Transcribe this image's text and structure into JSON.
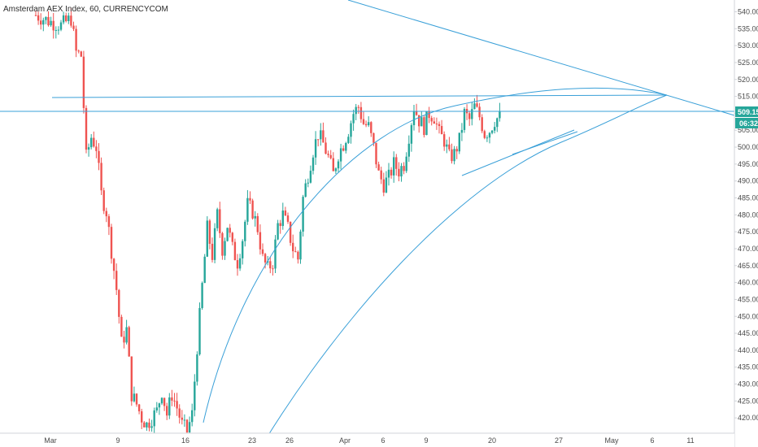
{
  "header": {
    "symbol_text": "Amsterdam AEX Index, 60, CURRENCYCOM"
  },
  "price_tag": {
    "value": "509.15",
    "countdown": "06:32",
    "color": "#26a69a"
  },
  "colors": {
    "up": "#26a69a",
    "down": "#ef5350",
    "drawing": "#3aa0d8",
    "axis": "#d0d3d8"
  },
  "chart_data": {
    "type": "candlestick",
    "y_axis": {
      "min": 415,
      "max": 543,
      "ticks": [
        420,
        425,
        430,
        435,
        440,
        445,
        450,
        455,
        460,
        465,
        470,
        475,
        480,
        485,
        490,
        495,
        500,
        505,
        510,
        515,
        520,
        525,
        530,
        535,
        540
      ],
      "tick_labels": [
        "420.00",
        "425.00",
        "430.00",
        "435.00",
        "440.00",
        "445.00",
        "450.00",
        "455.00",
        "460.00",
        "465.00",
        "470.00",
        "475.00",
        "480.00",
        "485.00",
        "490.00",
        "495.00",
        "500.00",
        "505.00",
        "510.00",
        "515.00",
        "520.00",
        "525.00",
        "530.00",
        "535.00",
        "540.00"
      ]
    },
    "x_axis": {
      "labels": [
        "Mar",
        "9",
        "16",
        "23",
        "26",
        "Apr",
        "6",
        "9",
        "20",
        "27",
        "May",
        "6",
        "11"
      ]
    },
    "price_path": [
      [
        0,
        539
      ],
      [
        6,
        537
      ],
      [
        10,
        536
      ],
      [
        14,
        538
      ],
      [
        16,
        528
      ],
      [
        18,
        527
      ],
      [
        20,
        497
      ],
      [
        22,
        503
      ],
      [
        24,
        500
      ],
      [
        26,
        486
      ],
      [
        28,
        481
      ],
      [
        32,
        458
      ],
      [
        34,
        442
      ],
      [
        36,
        446
      ],
      [
        38,
        427
      ],
      [
        40,
        424
      ],
      [
        42,
        420
      ],
      [
        44,
        418
      ],
      [
        46,
        420
      ],
      [
        48,
        422
      ],
      [
        50,
        428
      ],
      [
        52,
        421
      ],
      [
        54,
        427
      ],
      [
        56,
        423
      ],
      [
        58,
        418
      ],
      [
        60,
        416
      ],
      [
        62,
        421
      ],
      [
        64,
        441
      ],
      [
        66,
        459
      ],
      [
        68,
        476
      ],
      [
        70,
        468
      ],
      [
        72,
        480
      ],
      [
        74,
        470
      ],
      [
        76,
        477
      ],
      [
        78,
        470
      ],
      [
        80,
        466
      ],
      [
        82,
        473
      ],
      [
        84,
        483
      ],
      [
        86,
        481
      ],
      [
        88,
        476
      ],
      [
        90,
        467
      ],
      [
        92,
        464
      ],
      [
        94,
        466
      ],
      [
        96,
        477
      ],
      [
        98,
        480
      ],
      [
        100,
        476
      ],
      [
        102,
        470
      ],
      [
        104,
        467
      ],
      [
        106,
        485
      ],
      [
        108,
        492
      ],
      [
        110,
        499
      ],
      [
        112,
        504
      ],
      [
        114,
        501
      ],
      [
        116,
        497
      ],
      [
        118,
        492
      ],
      [
        120,
        498
      ],
      [
        122,
        501
      ],
      [
        124,
        505
      ],
      [
        126,
        510
      ],
      [
        128,
        512
      ],
      [
        130,
        507
      ],
      [
        132,
        506
      ],
      [
        134,
        500
      ],
      [
        136,
        492
      ],
      [
        138,
        489
      ],
      [
        140,
        491
      ],
      [
        142,
        495
      ],
      [
        144,
        493
      ],
      [
        146,
        495
      ],
      [
        150,
        512
      ],
      [
        152,
        508
      ],
      [
        154,
        506
      ],
      [
        156,
        510
      ],
      [
        158,
        509
      ],
      [
        160,
        504
      ],
      [
        162,
        502
      ],
      [
        164,
        497
      ],
      [
        166,
        498
      ],
      [
        168,
        502
      ],
      [
        170,
        510
      ],
      [
        172,
        508
      ],
      [
        174,
        512
      ],
      [
        176,
        509
      ],
      [
        178,
        504
      ],
      [
        180,
        505
      ],
      [
        182,
        508
      ],
      [
        184,
        509
      ]
    ]
  }
}
